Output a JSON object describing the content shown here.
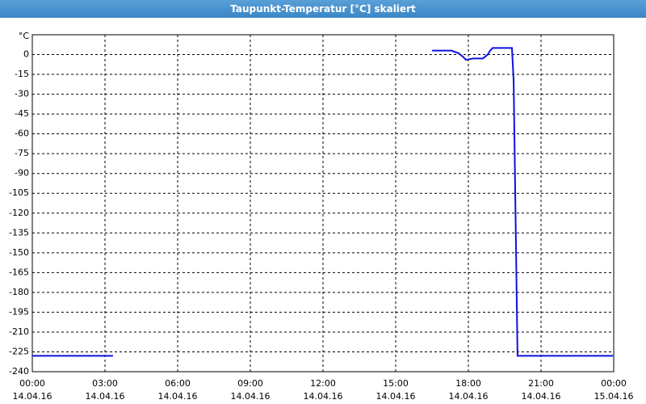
{
  "chart_data": {
    "type": "line",
    "title": "Taupunkt-Temperatur [°C] skaliert",
    "y_unit": "°C",
    "x": [
      0,
      3.33,
      3.5,
      16.5,
      17.3,
      17.6,
      17.8,
      17.9,
      18.2,
      18.6,
      18.8,
      18.9,
      19.0,
      19.8,
      19.87,
      19.97,
      20.03,
      23.97
    ],
    "series": [
      {
        "name": "Taupunkt",
        "color": "#1010e0",
        "values": [
          -228,
          -228,
          null,
          3,
          3,
          1,
          -2,
          -4,
          -3,
          -3,
          0,
          3,
          5,
          5,
          -20,
          -150,
          -228,
          -228
        ]
      }
    ],
    "xlim": [
      0,
      24
    ],
    "ylim": [
      -240,
      15
    ],
    "xticks": [
      {
        "value": 0,
        "label": [
          "00:00",
          "14.04.16"
        ]
      },
      {
        "value": 3,
        "label": [
          "03:00",
          "14.04.16"
        ]
      },
      {
        "value": 6,
        "label": [
          "06:00",
          "14.04.16"
        ]
      },
      {
        "value": 9,
        "label": [
          "09:00",
          "14.04.16"
        ]
      },
      {
        "value": 12,
        "label": [
          "12:00",
          "14.04.16"
        ]
      },
      {
        "value": 15,
        "label": [
          "15:00",
          "14.04.16"
        ]
      },
      {
        "value": 18,
        "label": [
          "18:00",
          "14.04.16"
        ]
      },
      {
        "value": 21,
        "label": [
          "21:00",
          "14.04.16"
        ]
      },
      {
        "value": 24,
        "label": [
          "00:00",
          "15.04.16"
        ]
      }
    ],
    "yticks": [
      0,
      -15,
      -30,
      -45,
      -60,
      -75,
      -90,
      -105,
      -120,
      -135,
      -150,
      -165,
      -180,
      -195,
      -210,
      -225,
      -240
    ],
    "grid": true
  }
}
